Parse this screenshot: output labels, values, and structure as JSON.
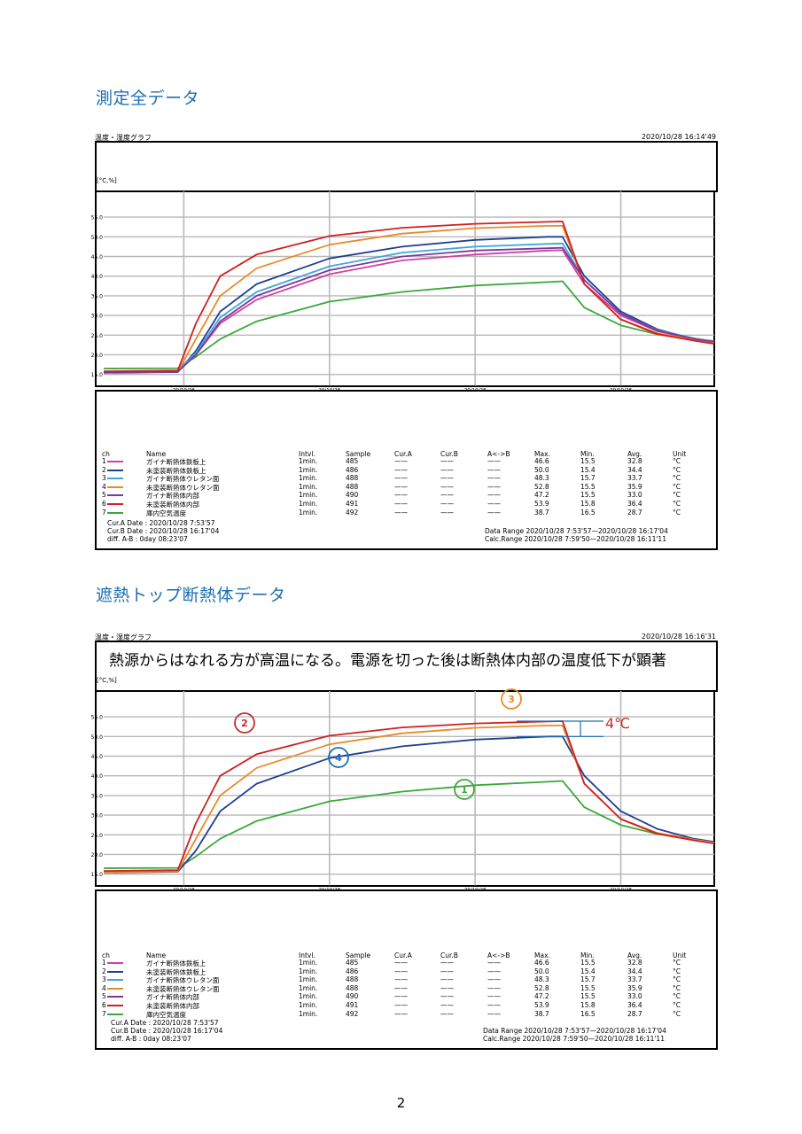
{
  "page": {
    "heading1": "測定全データ",
    "heading2": "遮熱トップ断熱体データ",
    "page_number": "2"
  },
  "panels": [
    {
      "title": "温度・湿度グラフ",
      "datetime": "2020/10/28 16:14'49",
      "note": "",
      "unit_label": "[°C,%]",
      "cur_a": "Cur.A Date  : 2020/10/28  7:53'57",
      "cur_b": "Cur.B Date  : 2020/10/28 16:17'04",
      "diff": "diff. A-B   : 0day 08:23'07",
      "data_range": "Data Range 2020/10/28  7:53'57—2020/10/28 16:17'04",
      "calc_range": "Calc.Range 2020/10/28  7:59'50—2020/10/28 16:11'11"
    },
    {
      "title": "温度・湿度グラフ",
      "datetime": "2020/10/28 16:16'31",
      "note": "熱源からはなれる方が高温になる。電源を切った後は断熱体内部の温度低下が顕著",
      "unit_label": "[°C,%]",
      "cur_a": "Cur.A Date  : 2020/10/28  7:53'57",
      "cur_b": "Cur.B Date  : 2020/10/28 16:17'04",
      "diff": "diff. A-B   : 0day 08:23'07",
      "data_range": "Data Range 2020/10/28  7:53'57—2020/10/28 16:17'04",
      "calc_range": "Calc.Range 2020/10/28  7:59'50—2020/10/28 16:11'11",
      "annotation_delta": "4℃",
      "markers": [
        "1",
        "2",
        "3",
        "4"
      ]
    }
  ],
  "table": {
    "headers": [
      "ch",
      "Name",
      "Intvl.",
      "Sample",
      "Cur.A",
      "Cur.B",
      "A<->B",
      "Max.",
      "Min.",
      "Avg.",
      "Unit"
    ],
    "rows": [
      {
        "ch": "1",
        "name": "ガイナ断熱体鉄板上",
        "intvl": "1min.",
        "sample": "485",
        "cur_a": "——",
        "cur_b": "——",
        "ab": "——",
        "max": "46.6",
        "min": "15.5",
        "avg": "32.8",
        "unit": "°C"
      },
      {
        "ch": "2",
        "name": "未塗装断熱体鉄板上",
        "intvl": "1min.",
        "sample": "486",
        "cur_a": "——",
        "cur_b": "——",
        "ab": "——",
        "max": "50.0",
        "min": "15.4",
        "avg": "34.4",
        "unit": "°C"
      },
      {
        "ch": "3",
        "name": "ガイナ断熱体ウレタン面",
        "intvl": "1min.",
        "sample": "488",
        "cur_a": "——",
        "cur_b": "——",
        "ab": "——",
        "max": "48.3",
        "min": "15.7",
        "avg": "33.7",
        "unit": "°C"
      },
      {
        "ch": "4",
        "name": "未塗装断熱体ウレタン面",
        "intvl": "1min.",
        "sample": "488",
        "cur_a": "——",
        "cur_b": "——",
        "ab": "——",
        "max": "52.8",
        "min": "15.5",
        "avg": "35.9",
        "unit": "°C"
      },
      {
        "ch": "5",
        "name": "ガイナ断熱体内部",
        "intvl": "1min.",
        "sample": "490",
        "cur_a": "——",
        "cur_b": "——",
        "ab": "——",
        "max": "47.2",
        "min": "15.5",
        "avg": "33.0",
        "unit": "°C"
      },
      {
        "ch": "6",
        "name": "未塗装断熱体内部",
        "intvl": "1min.",
        "sample": "491",
        "cur_a": "——",
        "cur_b": "——",
        "ab": "——",
        "max": "53.9",
        "min": "15.8",
        "avg": "36.4",
        "unit": "°C"
      },
      {
        "ch": "7",
        "name": "庫内空気温度",
        "intvl": "1min.",
        "sample": "492",
        "cur_a": "——",
        "cur_b": "——",
        "ab": "——",
        "max": "38.7",
        "min": "16.5",
        "avg": "28.7",
        "unit": "°C"
      }
    ]
  },
  "chart_data": [
    {
      "type": "line",
      "title": "温度・湿度グラフ",
      "ylabel": "[°C,%]",
      "ylim": [
        12.0,
        57.5
      ],
      "yticks": [
        "15.0",
        "20.0",
        "25.0",
        "30.0",
        "35.0",
        "40.0",
        "45.0",
        "50.0",
        "55.0"
      ],
      "xlim": [
        "2020/10/28 07:54",
        "2020/10/28 16:17"
      ],
      "xticks": [
        {
          "date": "20/10/28",
          "time": "9:00'00"
        },
        {
          "date": "20/10/28",
          "time": "11:00'00"
        },
        {
          "date": "20/10/28",
          "time": "13:00'00"
        },
        {
          "date": "20/10/28",
          "time": "15:00'00"
        }
      ],
      "grid": true,
      "colors": {
        "1": "#d040a0",
        "2": "#1f3f90",
        "3": "#3fa6dc",
        "4": "#e98a2a",
        "5": "#7a3a9a",
        "6": "#d02020",
        "7": "#3aa83a"
      },
      "series": [
        {
          "ch": "1",
          "points": [
            [
              "07:54",
              15.5
            ],
            [
              "08:55",
              15.7
            ],
            [
              "09:10",
              20
            ],
            [
              "09:30",
              28
            ],
            [
              "10:00",
              34
            ],
            [
              "11:00",
              40.5
            ],
            [
              "12:00",
              44
            ],
            [
              "13:00",
              45.5
            ],
            [
              "14:00",
              46.5
            ],
            [
              "14:12",
              46.6
            ],
            [
              "14:30",
              38
            ],
            [
              "15:00",
              30
            ],
            [
              "15:30",
              26
            ],
            [
              "16:00",
              24
            ],
            [
              "16:17",
              23.5
            ]
          ]
        },
        {
          "ch": "2",
          "points": [
            [
              "07:54",
              15.4
            ],
            [
              "08:55",
              15.6
            ],
            [
              "09:10",
              21
            ],
            [
              "09:30",
              31
            ],
            [
              "10:00",
              38
            ],
            [
              "11:00",
              44.5
            ],
            [
              "12:00",
              47.5
            ],
            [
              "13:00",
              49.2
            ],
            [
              "14:00",
              50
            ],
            [
              "14:12",
              50
            ],
            [
              "14:30",
              40
            ],
            [
              "15:00",
              31
            ],
            [
              "15:30",
              26.5
            ],
            [
              "16:00",
              24
            ],
            [
              "16:17",
              23.2
            ]
          ]
        },
        {
          "ch": "3",
          "points": [
            [
              "07:54",
              15.7
            ],
            [
              "08:55",
              15.9
            ],
            [
              "09:10",
              20.5
            ],
            [
              "09:30",
              29.5
            ],
            [
              "10:00",
              36
            ],
            [
              "11:00",
              42.5
            ],
            [
              "12:00",
              46
            ],
            [
              "13:00",
              47.5
            ],
            [
              "14:00",
              48.2
            ],
            [
              "14:12",
              48.3
            ],
            [
              "14:30",
              39
            ],
            [
              "15:00",
              30.5
            ],
            [
              "15:30",
              26.3
            ],
            [
              "16:00",
              24.2
            ],
            [
              "16:17",
              23.4
            ]
          ]
        },
        {
          "ch": "4",
          "points": [
            [
              "07:54",
              15.5
            ],
            [
              "08:55",
              15.7
            ],
            [
              "09:10",
              24
            ],
            [
              "09:30",
              35
            ],
            [
              "10:00",
              42
            ],
            [
              "11:00",
              48
            ],
            [
              "12:00",
              50.8
            ],
            [
              "13:00",
              52.2
            ],
            [
              "14:00",
              52.8
            ],
            [
              "14:12",
              52.8
            ],
            [
              "14:30",
              38
            ],
            [
              "15:00",
              29
            ],
            [
              "15:30",
              25.5
            ],
            [
              "16:00",
              23.8
            ],
            [
              "16:17",
              23
            ]
          ]
        },
        {
          "ch": "5",
          "points": [
            [
              "07:54",
              15.5
            ],
            [
              "08:55",
              15.7
            ],
            [
              "09:10",
              20
            ],
            [
              "09:30",
              28.5
            ],
            [
              "10:00",
              35
            ],
            [
              "11:00",
              41.5
            ],
            [
              "12:00",
              45
            ],
            [
              "13:00",
              46.5
            ],
            [
              "14:00",
              47.1
            ],
            [
              "14:12",
              47.2
            ],
            [
              "14:30",
              39
            ],
            [
              "15:00",
              30.5
            ],
            [
              "15:30",
              26.2
            ],
            [
              "16:00",
              24.1
            ],
            [
              "16:17",
              23.3
            ]
          ]
        },
        {
          "ch": "6",
          "points": [
            [
              "07:54",
              15.8
            ],
            [
              "08:55",
              16
            ],
            [
              "09:10",
              28
            ],
            [
              "09:30",
              40
            ],
            [
              "10:00",
              45.5
            ],
            [
              "11:00",
              50.2
            ],
            [
              "12:00",
              52.3
            ],
            [
              "13:00",
              53.3
            ],
            [
              "14:00",
              53.8
            ],
            [
              "14:12",
              53.9
            ],
            [
              "14:30",
              38
            ],
            [
              "15:00",
              29
            ],
            [
              "15:30",
              25.3
            ],
            [
              "16:00",
              23.6
            ],
            [
              "16:17",
              22.8
            ]
          ]
        },
        {
          "ch": "7",
          "points": [
            [
              "07:54",
              16.5
            ],
            [
              "08:55",
              16.6
            ],
            [
              "09:10",
              19.5
            ],
            [
              "09:30",
              24
            ],
            [
              "10:00",
              28.5
            ],
            [
              "11:00",
              33.5
            ],
            [
              "12:00",
              36
            ],
            [
              "13:00",
              37.6
            ],
            [
              "14:00",
              38.5
            ],
            [
              "14:12",
              38.7
            ],
            [
              "14:30",
              32
            ],
            [
              "15:00",
              27.5
            ],
            [
              "15:30",
              25.2
            ],
            [
              "16:00",
              23.8
            ],
            [
              "16:17",
              23.2
            ]
          ]
        }
      ]
    },
    {
      "type": "line",
      "title": "温度・湿度グラフ",
      "ylabel": "[°C,%]",
      "ylim": [
        12.0,
        57.5
      ],
      "yticks": [
        "15.0",
        "20.0",
        "25.0",
        "30.0",
        "35.0",
        "40.0",
        "45.0",
        "50.0",
        "55.0"
      ],
      "xlim": [
        "2020/10/28 07:54",
        "2020/10/28 16:17"
      ],
      "xticks": [
        {
          "date": "20/10/28",
          "time": "9:00'00"
        },
        {
          "date": "20/10/28",
          "time": "11:00'00"
        },
        {
          "date": "20/10/28",
          "time": "13:00'00"
        },
        {
          "date": "20/10/28",
          "time": "15:00'00"
        }
      ],
      "grid": true,
      "colors": {
        "2": "#1f3f90",
        "4": "#e98a2a",
        "6": "#d02020",
        "7": "#3aa83a"
      },
      "series": [
        {
          "ch": "2",
          "points": [
            [
              "07:54",
              15.4
            ],
            [
              "08:55",
              15.6
            ],
            [
              "09:10",
              21
            ],
            [
              "09:30",
              31
            ],
            [
              "10:00",
              38
            ],
            [
              "11:00",
              44.5
            ],
            [
              "12:00",
              47.5
            ],
            [
              "13:00",
              49.2
            ],
            [
              "14:00",
              50
            ],
            [
              "14:12",
              50
            ],
            [
              "14:30",
              40
            ],
            [
              "15:00",
              31
            ],
            [
              "15:30",
              26.5
            ],
            [
              "16:00",
              24
            ],
            [
              "16:17",
              23.2
            ]
          ]
        },
        {
          "ch": "4",
          "points": [
            [
              "07:54",
              15.5
            ],
            [
              "08:55",
              15.7
            ],
            [
              "09:10",
              24
            ],
            [
              "09:30",
              35
            ],
            [
              "10:00",
              42
            ],
            [
              "11:00",
              48
            ],
            [
              "12:00",
              50.8
            ],
            [
              "13:00",
              52.2
            ],
            [
              "14:00",
              52.8
            ],
            [
              "14:12",
              52.8
            ],
            [
              "14:30",
              38
            ],
            [
              "15:00",
              29
            ],
            [
              "15:30",
              25.5
            ],
            [
              "16:00",
              23.8
            ],
            [
              "16:17",
              23
            ]
          ]
        },
        {
          "ch": "6",
          "points": [
            [
              "07:54",
              15.8
            ],
            [
              "08:55",
              16
            ],
            [
              "09:10",
              28
            ],
            [
              "09:30",
              40
            ],
            [
              "10:00",
              45.5
            ],
            [
              "11:00",
              50.2
            ],
            [
              "12:00",
              52.3
            ],
            [
              "13:00",
              53.3
            ],
            [
              "14:00",
              53.8
            ],
            [
              "14:12",
              53.9
            ],
            [
              "14:30",
              38
            ],
            [
              "15:00",
              29
            ],
            [
              "15:30",
              25.3
            ],
            [
              "16:00",
              23.6
            ],
            [
              "16:17",
              22.8
            ]
          ]
        },
        {
          "ch": "7",
          "points": [
            [
              "07:54",
              16.5
            ],
            [
              "08:55",
              16.6
            ],
            [
              "09:10",
              19.5
            ],
            [
              "09:30",
              24
            ],
            [
              "10:00",
              28.5
            ],
            [
              "11:00",
              33.5
            ],
            [
              "12:00",
              36
            ],
            [
              "13:00",
              37.6
            ],
            [
              "14:00",
              38.5
            ],
            [
              "14:12",
              38.7
            ],
            [
              "14:30",
              32
            ],
            [
              "15:00",
              27.5
            ],
            [
              "15:30",
              25.2
            ],
            [
              "16:00",
              23.8
            ],
            [
              "16:17",
              23.2
            ]
          ]
        }
      ]
    }
  ]
}
